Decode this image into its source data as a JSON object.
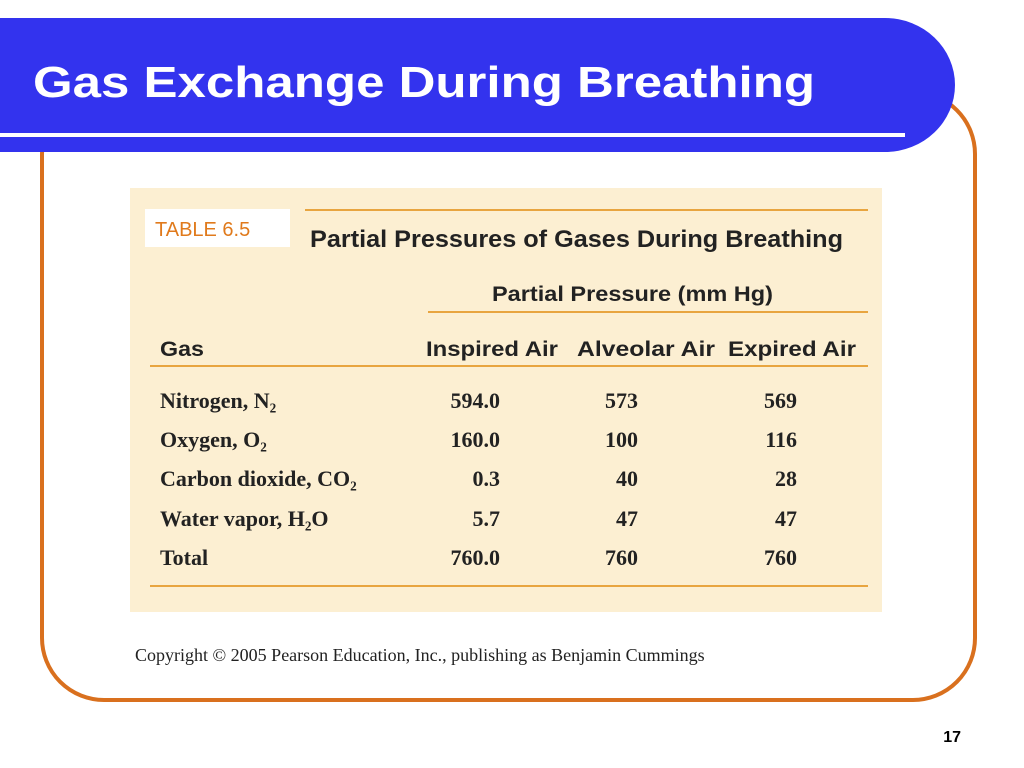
{
  "slide": {
    "title": "Gas Exchange During Breathing",
    "page_number": "17"
  },
  "table": {
    "label": "TABLE 6.5",
    "title": "Partial Pressures of Gases During Breathing",
    "group_header": "Partial Pressure (mm Hg)",
    "columns": [
      "Gas",
      "Inspired Air",
      "Alveolar Air",
      "Expired Air"
    ],
    "rows": [
      [
        "Nitrogen, N₂",
        "594.0",
        "573",
        "569"
      ],
      [
        "Oxygen, O₂",
        "160.0",
        "100",
        "116"
      ],
      [
        "Carbon dioxide, CO₂",
        "0.3",
        "40",
        "28"
      ],
      [
        "Water vapor, H₂O",
        "5.7",
        "47",
        "47"
      ],
      [
        "Total",
        "760.0",
        "760",
        "760"
      ]
    ]
  },
  "copyright": "Copyright © 2005 Pearson Education, Inc., publishing as Benjamin Cummings"
}
